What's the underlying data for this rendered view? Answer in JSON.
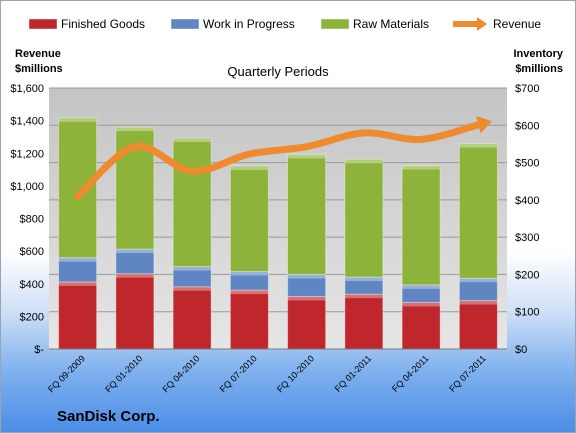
{
  "chart_data": {
    "type": "bar",
    "subtype": "stacked-bar-with-line",
    "title": "Quarterly Periods",
    "footer": "SanDisk Corp.",
    "categories": [
      "FQ 09-2009",
      "FQ 01-2010",
      "FQ 04-2010",
      "FQ 07-2010",
      "FQ 10-2010",
      "FQ 01-2011",
      "FQ 04-2011",
      "FQ 07-2011"
    ],
    "series": [
      {
        "name": "Finished Goods",
        "axis": "right",
        "color": "#c0272d",
        "values": [
          180,
          202,
          167,
          158,
          141,
          147,
          125,
          130
        ]
      },
      {
        "name": "Work in Progress",
        "axis": "right",
        "color": "#5f86c2",
        "values": [
          65,
          66,
          54,
          50,
          59,
          46,
          47,
          60
        ]
      },
      {
        "name": "Raw Materials",
        "axis": "right",
        "color": "#8db33a",
        "values": [
          375,
          327,
          345,
          283,
          322,
          316,
          320,
          361
        ]
      },
      {
        "name": "Revenue",
        "axis": "left",
        "type": "line",
        "color": "#ef8a2e",
        "values": [
          935,
          1240,
          1090,
          1195,
          1240,
          1325,
          1285,
          1375
        ]
      }
    ],
    "left_axis": {
      "label_lines": [
        "Revenue",
        "$millions"
      ],
      "ylim": [
        0,
        1600
      ],
      "ticks": [
        0,
        200,
        400,
        600,
        800,
        1000,
        1200,
        1400,
        1600
      ],
      "tick_labels": [
        "$-",
        "$200",
        "$400",
        "$600",
        "$800",
        "$1,000",
        "$1,200",
        "$1,400",
        "$1,600"
      ]
    },
    "right_axis": {
      "label_lines": [
        "Inventory",
        "$millions"
      ],
      "ylim": [
        0,
        700
      ],
      "ticks": [
        0,
        100,
        200,
        300,
        400,
        500,
        600,
        700
      ],
      "tick_labels": [
        "$0",
        "$100",
        "$200",
        "$300",
        "$400",
        "$500",
        "$600",
        "$700"
      ]
    },
    "grid": true,
    "legend_position": "top"
  }
}
